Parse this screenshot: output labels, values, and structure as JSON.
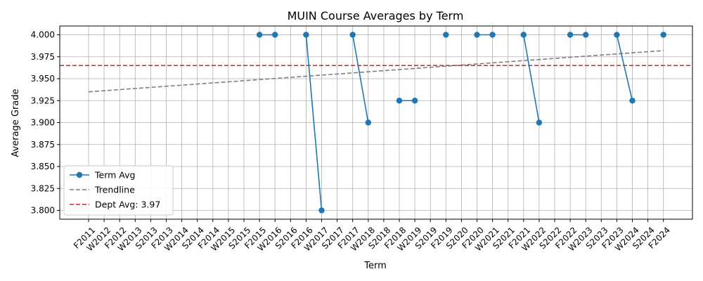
{
  "chart_data": {
    "type": "line",
    "title": "MUIN Course Averages by Term",
    "xlabel": "Term",
    "ylabel": "Average Grade",
    "categories": [
      "F2011",
      "W2012",
      "F2012",
      "W2013",
      "S2013",
      "F2013",
      "W2014",
      "S2014",
      "F2014",
      "W2015",
      "S2015",
      "F2015",
      "W2016",
      "S2016",
      "F2016",
      "W2017",
      "S2017",
      "F2017",
      "W2018",
      "S2018",
      "F2018",
      "W2019",
      "S2019",
      "F2019",
      "S2020",
      "F2020",
      "W2021",
      "S2021",
      "F2021",
      "W2022",
      "S2022",
      "F2022",
      "W2023",
      "S2023",
      "F2023",
      "W2024",
      "S2024",
      "F2024"
    ],
    "ylim": [
      3.79,
      4.01
    ],
    "yticks": [
      "3.800",
      "3.825",
      "3.850",
      "3.875",
      "3.900",
      "3.925",
      "3.950",
      "3.975",
      "4.000"
    ],
    "grid": true,
    "legend_position": "lower-left",
    "series": [
      {
        "name": "Term Avg",
        "color": "#1f77b4",
        "segments": [
          {
            "x": [
              "F2015",
              "W2016"
            ],
            "y": [
              4.0,
              4.0
            ]
          },
          {
            "x": [
              "F2016",
              "W2017"
            ],
            "y": [
              4.0,
              3.8
            ]
          },
          {
            "x": [
              "F2017",
              "W2018"
            ],
            "y": [
              4.0,
              3.9
            ]
          },
          {
            "x": [
              "F2018",
              "W2019"
            ],
            "y": [
              3.925,
              3.925
            ]
          },
          {
            "x": [
              "F2019"
            ],
            "y": [
              4.0
            ]
          },
          {
            "x": [
              "F2020",
              "W2021"
            ],
            "y": [
              4.0,
              4.0
            ]
          },
          {
            "x": [
              "F2021",
              "W2022"
            ],
            "y": [
              4.0,
              3.9
            ]
          },
          {
            "x": [
              "F2022",
              "W2023"
            ],
            "y": [
              4.0,
              4.0
            ]
          },
          {
            "x": [
              "F2023",
              "W2024"
            ],
            "y": [
              4.0,
              3.925
            ]
          },
          {
            "x": [
              "F2024"
            ],
            "y": [
              4.0
            ]
          }
        ]
      },
      {
        "name": "Trendline",
        "color": "#808080",
        "style": "dashed",
        "x": [
          "F2011",
          "F2024"
        ],
        "y": [
          3.935,
          3.982
        ]
      },
      {
        "name": "Dept Avg: 3.97",
        "color": "#d62728",
        "style": "dashed",
        "type": "hline",
        "y": 3.965
      }
    ]
  }
}
